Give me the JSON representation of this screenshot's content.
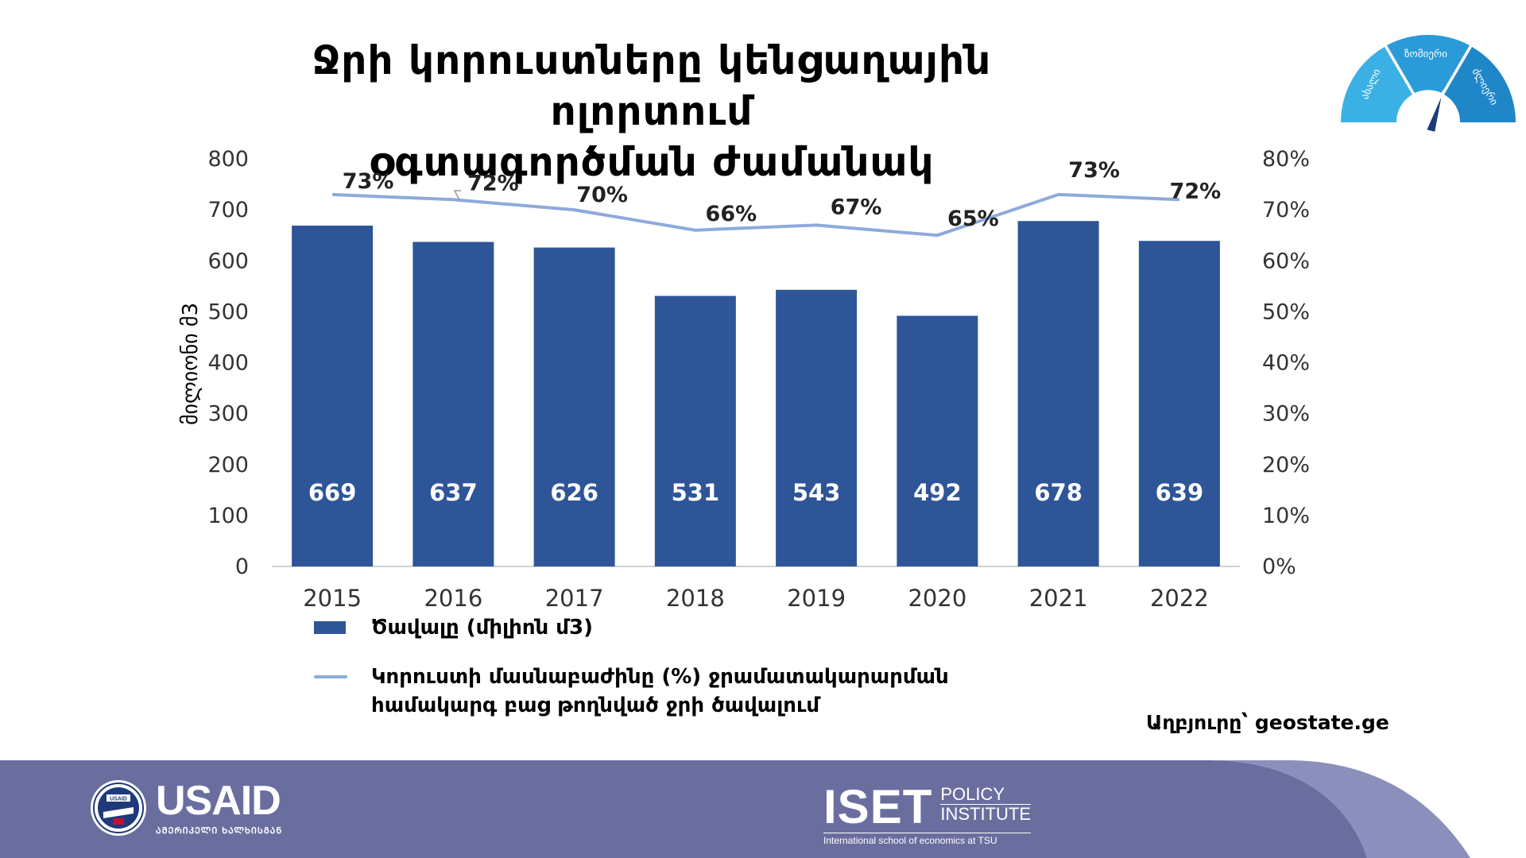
{
  "header": {
    "title_line1": "Ջրի կորուստները կենցաղային ոլորտում",
    "title_line2": "օգտագործման ժամանակ"
  },
  "gauge": {
    "label_left": "ახალი",
    "label_top": "ზომიერი",
    "label_right": "ძლიერი",
    "colors": [
      "#3ab0e4",
      "#2a9bd8",
      "#1f86c8"
    ]
  },
  "chart_data": {
    "type": "bar",
    "categories": [
      "2015",
      "2016",
      "2017",
      "2018",
      "2019",
      "2020",
      "2021",
      "2022"
    ],
    "series": [
      {
        "name": "Ծավալը (միլիոն մ3)",
        "type": "bar",
        "axis": "left",
        "color": "#2e5597",
        "values": [
          669,
          637,
          626,
          531,
          543,
          492,
          678,
          639
        ],
        "labels": [
          "669",
          "637",
          "626",
          "531",
          "543",
          "492",
          "678",
          "639"
        ]
      },
      {
        "name": "Կորուստի մասնաբաժինը (%) ջրամատակարարման համակարգ բաց թողնված ջրի ծավալում",
        "type": "line",
        "axis": "right",
        "color": "#8eaadb",
        "values": [
          73,
          72,
          70,
          66,
          67,
          65,
          73,
          72
        ],
        "labels": [
          "73%",
          "72%",
          "70%",
          "66%",
          "67%",
          "65%",
          "73%",
          "72%"
        ]
      }
    ],
    "ylabel": "მილიონი მ3",
    "ylim": [
      0,
      800
    ],
    "y_ticks": [
      "0",
      "100",
      "200",
      "300",
      "400",
      "500",
      "600",
      "700",
      "800"
    ],
    "y2lim": [
      0,
      80
    ],
    "y2_ticks": [
      "0%",
      "10%",
      "20%",
      "30%",
      "40%",
      "50%",
      "60%",
      "70%",
      "80%"
    ],
    "grid": false,
    "legend": "bottom-left"
  },
  "legend": {
    "bar_label": "Ծավալը (միլիոն մ3)",
    "line_label_1": "Կորուստի մասնաբաժինը (%) ջրամատակարարման",
    "line_label_2": "համակարգ բաց թողնված ջրի ծավալում"
  },
  "source": "Աղբյուրը՝ geostate.ge",
  "footer": {
    "usaid_name": "USAID",
    "usaid_sub": "ᲐᲛᲔᲠᲘᲙᲔᲚᲘ ᲮᲐᲚᲮᲘᲡᲒᲐᲜ",
    "usaid_seal_text": "USAID",
    "iset_name": "ISET",
    "iset_line1": "POLICY",
    "iset_line2": "INSTITUTE",
    "iset_sub": "International school of economics at TSU",
    "colors": {
      "band": "#6a6e9f",
      "band_light": "#8b8fbc",
      "accent": "#b8bbd8"
    }
  }
}
